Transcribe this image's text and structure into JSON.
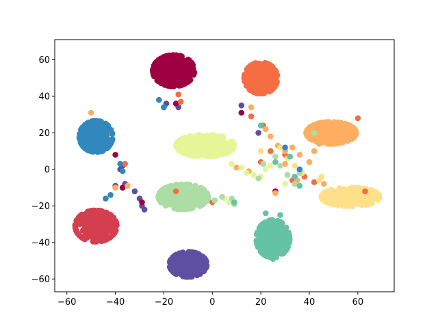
{
  "chart_data": {
    "type": "scatter",
    "title": "",
    "xlabel": "",
    "ylabel": "",
    "xlim": [
      -65,
      75
    ],
    "ylim": [
      -67,
      71
    ],
    "xticks": [
      -60,
      -40,
      -20,
      0,
      20,
      40,
      60
    ],
    "yticks": [
      -60,
      -40,
      -20,
      0,
      20,
      40,
      60
    ],
    "xtick_labels": [
      "−60",
      "−40",
      "−20",
      "0",
      "20",
      "40",
      "60"
    ],
    "ytick_labels": [
      "−60",
      "−40",
      "−20",
      "0",
      "20",
      "40",
      "60"
    ],
    "grid": false,
    "legend": "none",
    "clusters": [
      {
        "color": "#9e0142",
        "center": [
          -16,
          54
        ],
        "spread": [
          5,
          5
        ],
        "count": 360
      },
      {
        "color": "#d53e4f",
        "center": [
          -48,
          -31
        ],
        "spread": [
          5,
          5
        ],
        "count": 360
      },
      {
        "color": "#f46d43",
        "center": [
          20,
          50
        ],
        "spread": [
          4,
          5
        ],
        "count": 340
      },
      {
        "color": "#fdae61",
        "center": [
          49,
          20
        ],
        "spread": [
          6,
          3.5
        ],
        "count": 340
      },
      {
        "color": "#fee08b",
        "center": [
          57,
          -15
        ],
        "spread": [
          7,
          3
        ],
        "count": 340
      },
      {
        "color": "#e6f598",
        "center": [
          -3,
          13
        ],
        "spread": [
          7,
          3.5
        ],
        "count": 340
      },
      {
        "color": "#abdda4",
        "center": [
          -12,
          -15
        ],
        "spread": [
          6,
          4
        ],
        "count": 340
      },
      {
        "color": "#66c2a5",
        "center": [
          25,
          -38
        ],
        "spread": [
          4,
          6
        ],
        "count": 340
      },
      {
        "color": "#3288bd",
        "center": [
          -48,
          18
        ],
        "spread": [
          4,
          5
        ],
        "count": 340
      },
      {
        "color": "#5e4fa2",
        "center": [
          -10,
          -52
        ],
        "spread": [
          4.5,
          4
        ],
        "count": 340
      }
    ],
    "strays": [
      {
        "color": "#5e4fa2",
        "points": [
          [
            -20,
            34
          ],
          [
            -19,
            36
          ],
          [
            -40,
            -9
          ],
          [
            -36,
            -8
          ],
          [
            -32,
            -12
          ],
          [
            -30,
            -16
          ],
          [
            -29,
            -20
          ],
          [
            -28,
            -22
          ],
          [
            -37,
            2
          ],
          [
            -38,
            0
          ],
          [
            19,
            20
          ],
          [
            12,
            35
          ],
          [
            -14,
            34
          ]
        ]
      },
      {
        "color": "#9e0142",
        "points": [
          [
            -40,
            8
          ],
          [
            -37,
            -10
          ],
          [
            -29,
            -18
          ],
          [
            12,
            31
          ],
          [
            26,
            -12
          ],
          [
            -15,
            36
          ]
        ]
      },
      {
        "color": "#f46d43",
        "points": [
          [
            -14,
            41
          ],
          [
            -15,
            -12
          ],
          [
            0,
            -18
          ],
          [
            24,
            10
          ],
          [
            33,
            -6
          ],
          [
            38,
            -4
          ],
          [
            42,
            -7
          ],
          [
            60,
            28
          ],
          [
            63,
            -12
          ],
          [
            -36,
            3
          ],
          [
            -13,
            37
          ],
          [
            16,
            29
          ],
          [
            21,
            24
          ],
          [
            20,
            4
          ],
          [
            30,
            8
          ]
        ]
      },
      {
        "color": "#fdae61",
        "points": [
          [
            -50,
            31
          ],
          [
            -40,
            -10
          ],
          [
            -35,
            -9
          ],
          [
            16,
            34
          ],
          [
            22,
            22
          ],
          [
            24,
            18
          ],
          [
            27,
            13
          ],
          [
            30,
            10
          ],
          [
            33,
            12
          ],
          [
            36,
            8
          ],
          [
            40,
            4
          ],
          [
            42,
            10
          ],
          [
            44,
            14
          ],
          [
            30,
            3
          ],
          [
            26,
            -13
          ],
          [
            35,
            -6
          ],
          [
            46,
            -8
          ],
          [
            10,
            1
          ],
          [
            15,
            -1
          ]
        ]
      },
      {
        "color": "#fee08b",
        "points": [
          [
            28,
            12
          ],
          [
            31,
            6
          ],
          [
            34,
            2
          ],
          [
            37,
            -2
          ],
          [
            44,
            -6
          ],
          [
            45,
            -4
          ],
          [
            20,
            10
          ]
        ]
      },
      {
        "color": "#e6f598",
        "points": [
          [
            8,
            3
          ],
          [
            12,
            1
          ],
          [
            14,
            -2
          ],
          [
            17,
            -3
          ],
          [
            20,
            -4
          ],
          [
            22,
            0
          ],
          [
            24,
            2
          ],
          [
            5,
            -16
          ],
          [
            7,
            -18
          ],
          [
            30,
            -8
          ]
        ]
      },
      {
        "color": "#abdda4",
        "points": [
          [
            1,
            -17
          ],
          [
            4,
            -15
          ],
          [
            8,
            -16
          ],
          [
            9,
            -19
          ],
          [
            19,
            -5
          ],
          [
            21,
            3
          ],
          [
            26,
            7
          ],
          [
            28,
            2
          ],
          [
            31,
            -3
          ],
          [
            34,
            -8
          ],
          [
            42,
            20
          ],
          [
            36,
            -2
          ]
        ]
      },
      {
        "color": "#66c2a5",
        "points": [
          [
            20,
            24
          ],
          [
            26,
            4
          ],
          [
            34,
            -4
          ],
          [
            36,
            -9
          ],
          [
            28,
            -25
          ],
          [
            22,
            -24
          ],
          [
            9,
            -18
          ],
          [
            25,
            -49
          ],
          [
            32,
            7
          ]
        ]
      },
      {
        "color": "#3288bd",
        "points": [
          [
            -20,
            34
          ],
          [
            -22,
            38
          ],
          [
            -38,
            3
          ],
          [
            -37,
            -1
          ],
          [
            -42,
            -14
          ],
          [
            -44,
            -16
          ],
          [
            30,
            12
          ],
          [
            36,
            0
          ]
        ]
      }
    ]
  }
}
